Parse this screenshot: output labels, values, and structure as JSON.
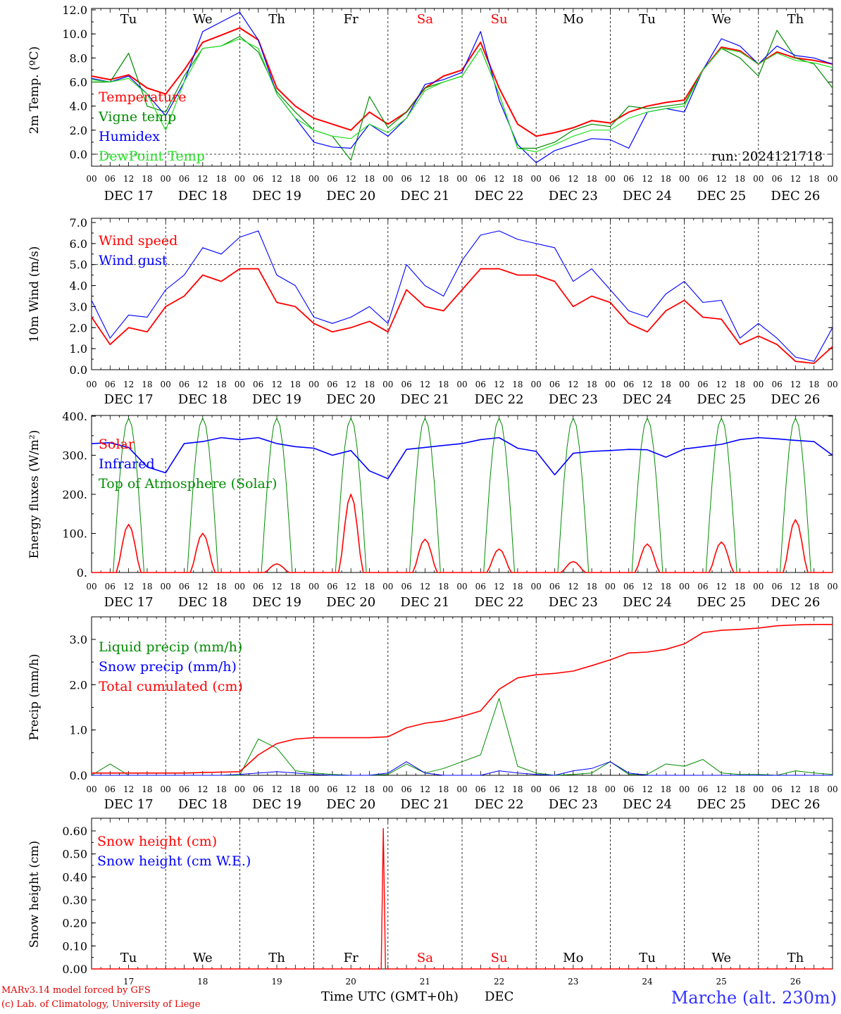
{
  "colors": {
    "temperature": "#ff0000",
    "vigne": "#008c00",
    "humidex": "#0000ff",
    "dewpoint": "#22e022",
    "wind_speed": "#ff0000",
    "wind_gust": "#0000ff",
    "solar": "#ff0000",
    "infrared": "#0000ff",
    "toa": "#008c00",
    "liquid": "#008c00",
    "snow": "#0000ff",
    "cumul": "#ff0000",
    "snow_h": "#ff0000",
    "snow_we": "#0000ff",
    "weekend": "#ff0000",
    "location": "#3232ff"
  },
  "time_axis": {
    "hour_ticks": [
      "00",
      "06",
      "12",
      "18"
    ],
    "dates": [
      "DEC 17",
      "DEC 18",
      "DEC 19",
      "DEC 20",
      "DEC 21",
      "DEC 22",
      "DEC 23",
      "DEC 24",
      "DEC 25",
      "DEC 26"
    ],
    "weekdays": [
      "Tu",
      "We",
      "Th",
      "Fr",
      "Sa",
      "Su",
      "Mo",
      "Tu",
      "We",
      "Th"
    ],
    "weekend_flags": [
      false,
      false,
      false,
      false,
      true,
      true,
      false,
      false,
      false,
      false
    ],
    "day_numbers": [
      "17",
      "18",
      "19",
      "20",
      "21",
      "22",
      "23",
      "24",
      "25",
      "26"
    ],
    "x_title": "Time UTC (GMT+0h)",
    "month": "DEC"
  },
  "chart_data": [
    {
      "type": "line",
      "ylabel": "2m Temp. (ºC)",
      "ylim": [
        -1.0,
        12.0
      ],
      "yticks": [
        "0.0",
        "2.0",
        "4.0",
        "6.0",
        "8.0",
        "10.0",
        "12.0"
      ],
      "reference_line": 0.0,
      "run_label": "run: 2024121718",
      "x_hours": [
        0,
        6,
        12,
        18,
        24,
        30,
        36,
        42,
        48,
        54,
        60,
        66,
        72,
        78,
        84,
        90,
        96,
        102,
        108,
        114,
        120,
        126,
        132,
        138,
        144,
        150,
        156,
        162,
        168,
        174,
        180,
        186,
        192,
        198,
        204,
        210,
        216,
        222,
        228,
        234,
        240
      ],
      "series": [
        {
          "name": "Temperature",
          "color_key": "temperature",
          "values": [
            6.5,
            6.2,
            6.6,
            5.5,
            5.0,
            7.0,
            9.3,
            9.9,
            10.5,
            9.5,
            5.5,
            4.0,
            3.0,
            2.5,
            2.0,
            3.5,
            2.5,
            3.5,
            5.5,
            6.5,
            7.0,
            9.3,
            5.5,
            2.5,
            1.5,
            1.8,
            2.2,
            2.8,
            2.6,
            3.5,
            4.0,
            4.3,
            4.5,
            7.0,
            8.9,
            8.6,
            7.5,
            8.5,
            8.0,
            7.8,
            7.5
          ]
        },
        {
          "name": "Vigne temp",
          "color_key": "vigne",
          "values": [
            6.0,
            6.0,
            8.4,
            4.0,
            3.5,
            6.5,
            8.8,
            9.0,
            9.8,
            8.5,
            5.2,
            3.5,
            2.0,
            1.5,
            -0.5,
            4.8,
            2.2,
            3.5,
            5.5,
            6.0,
            6.5,
            8.8,
            5.0,
            0.5,
            0.5,
            1.0,
            2.0,
            2.5,
            2.3,
            4.0,
            3.8,
            4.0,
            4.2,
            7.0,
            8.8,
            8.0,
            6.5,
            10.3,
            8.0,
            7.5,
            5.5
          ]
        },
        {
          "name": "Humidex",
          "color_key": "humidex",
          "values": [
            6.3,
            6.0,
            6.5,
            5.0,
            3.2,
            6.0,
            10.2,
            11.0,
            11.8,
            9.5,
            5.0,
            3.0,
            1.0,
            0.6,
            0.5,
            2.5,
            1.5,
            3.0,
            5.8,
            6.2,
            6.8,
            10.2,
            4.5,
            0.8,
            -0.7,
            0.3,
            0.8,
            1.3,
            1.2,
            0.5,
            3.5,
            3.8,
            3.5,
            7.0,
            9.6,
            9.0,
            7.5,
            9.0,
            8.2,
            8.0,
            7.5
          ]
        },
        {
          "name": "DewPoint Temp",
          "color_key": "dewpoint",
          "values": [
            6.2,
            6.0,
            6.3,
            5.0,
            2.0,
            6.0,
            8.8,
            9.0,
            9.6,
            8.8,
            5.0,
            3.0,
            2.0,
            1.5,
            1.3,
            2.5,
            1.8,
            3.0,
            5.3,
            6.0,
            6.5,
            8.8,
            5.0,
            0.5,
            0.2,
            0.8,
            1.5,
            2.0,
            2.0,
            3.0,
            3.5,
            3.8,
            4.0,
            7.0,
            8.8,
            8.5,
            7.5,
            8.4,
            7.8,
            7.6,
            7.2
          ]
        }
      ]
    },
    {
      "type": "line",
      "ylabel": "10m Wind (m/s)",
      "ylim": [
        0.0,
        7.5
      ],
      "yticks": [
        "0.0",
        "1.0",
        "2.0",
        "3.0",
        "4.0",
        "5.0",
        "6.0",
        "7.0"
      ],
      "reference_line": 5.0,
      "x_hours": [
        0,
        6,
        12,
        18,
        24,
        30,
        36,
        42,
        48,
        54,
        60,
        66,
        72,
        78,
        84,
        90,
        96,
        102,
        108,
        114,
        120,
        126,
        132,
        138,
        144,
        150,
        156,
        162,
        168,
        174,
        180,
        186,
        192,
        198,
        204,
        210,
        216,
        222,
        228,
        234,
        240
      ],
      "series": [
        {
          "name": "Wind speed",
          "color_key": "wind_speed",
          "values": [
            2.5,
            1.2,
            2.0,
            1.8,
            3.0,
            3.5,
            4.5,
            4.2,
            4.8,
            4.8,
            3.2,
            3.0,
            2.2,
            1.8,
            2.0,
            2.3,
            1.8,
            3.8,
            3.0,
            2.8,
            3.8,
            4.8,
            4.8,
            4.5,
            4.5,
            4.2,
            3.0,
            3.5,
            3.2,
            2.2,
            1.8,
            2.8,
            3.3,
            2.5,
            2.4,
            1.2,
            1.6,
            1.2,
            0.4,
            0.3,
            1.1
          ]
        },
        {
          "name": "Wind gust",
          "color_key": "wind_gust",
          "values": [
            3.3,
            1.5,
            2.6,
            2.5,
            3.8,
            4.5,
            5.8,
            5.5,
            6.3,
            6.6,
            4.5,
            4.0,
            2.5,
            2.2,
            2.5,
            3.0,
            2.2,
            5.0,
            4.0,
            3.5,
            5.2,
            6.4,
            6.6,
            6.2,
            6.0,
            5.8,
            4.2,
            4.8,
            3.8,
            2.8,
            2.5,
            3.6,
            4.2,
            3.2,
            3.3,
            1.5,
            2.2,
            1.5,
            0.6,
            0.4,
            2.0
          ]
        }
      ]
    },
    {
      "type": "line",
      "ylabel": "Energy fluxes (W/m²)",
      "ylim": [
        0,
        400
      ],
      "yticks": [
        "0.",
        "100.",
        "200.",
        "300.",
        "400."
      ],
      "series": [
        {
          "name": "Solar",
          "color_key": "solar",
          "peak_hour": 12,
          "peaks": [
            123,
            100,
            22,
            200,
            85,
            60,
            28,
            73,
            78,
            135
          ]
        },
        {
          "name": "Infrared",
          "color_key": "infrared",
          "x_hours": [
            0,
            6,
            12,
            18,
            24,
            30,
            36,
            42,
            48,
            54,
            60,
            66,
            72,
            78,
            84,
            90,
            96,
            102,
            108,
            114,
            120,
            126,
            132,
            138,
            144,
            150,
            156,
            162,
            168,
            174,
            180,
            186,
            192,
            198,
            204,
            210,
            216,
            222,
            228,
            234,
            240
          ],
          "values": [
            330,
            332,
            320,
            270,
            255,
            330,
            335,
            345,
            340,
            345,
            330,
            322,
            318,
            300,
            312,
            260,
            240,
            315,
            320,
            325,
            330,
            340,
            345,
            318,
            310,
            250,
            305,
            310,
            312,
            315,
            314,
            295,
            316,
            322,
            328,
            340,
            345,
            342,
            338,
            335,
            300
          ]
        },
        {
          "name": "Top of Atmosphere (Solar)",
          "color_key": "toa",
          "peak_hour": 12,
          "peaks": [
            395,
            395,
            395,
            395,
            395,
            395,
            395,
            395,
            395,
            395
          ]
        }
      ]
    },
    {
      "type": "line",
      "ylabel": "Precip (mm/h)",
      "ylim": [
        0.0,
        3.5
      ],
      "yticks": [
        "0.0",
        "1.0",
        "2.0",
        "3.0"
      ],
      "x_hours": [
        0,
        6,
        12,
        18,
        24,
        30,
        36,
        42,
        48,
        54,
        60,
        66,
        72,
        78,
        84,
        90,
        96,
        102,
        108,
        114,
        120,
        126,
        132,
        138,
        144,
        150,
        156,
        162,
        168,
        174,
        180,
        186,
        192,
        198,
        204,
        210,
        216,
        222,
        228,
        234,
        240
      ],
      "series": [
        {
          "name": "Liquid precip (mm/h)",
          "color_key": "liquid",
          "values": [
            0.0,
            0.25,
            0.0,
            0.0,
            0.0,
            0.0,
            0.0,
            0.0,
            0.0,
            0.8,
            0.6,
            0.1,
            0.05,
            0.02,
            0.0,
            0.0,
            0.02,
            0.25,
            0.05,
            0.15,
            0.3,
            0.45,
            1.7,
            0.2,
            0.05,
            0.0,
            0.02,
            0.05,
            0.3,
            0.02,
            0.02,
            0.25,
            0.2,
            0.35,
            0.05,
            0.02,
            0.02,
            0.0,
            0.1,
            0.05,
            0.02
          ]
        },
        {
          "name": "Snow precip (mm/h)",
          "color_key": "snow",
          "values": [
            0.0,
            0.0,
            0.0,
            0.0,
            0.0,
            0.0,
            0.0,
            0.0,
            0.02,
            0.05,
            0.08,
            0.05,
            0.02,
            0.0,
            0.0,
            0.0,
            0.05,
            0.3,
            0.05,
            0.0,
            0.0,
            0.0,
            0.1,
            0.05,
            0.02,
            0.0,
            0.1,
            0.15,
            0.3,
            0.05,
            0.0,
            0.0,
            0.0,
            0.0,
            0.0,
            0.0,
            0.0,
            0.0,
            0.0,
            0.0,
            0.0
          ]
        },
        {
          "name": "Total cumulated (cm)",
          "color_key": "cumul",
          "values": [
            0.05,
            0.05,
            0.05,
            0.05,
            0.05,
            0.05,
            0.06,
            0.07,
            0.08,
            0.45,
            0.7,
            0.8,
            0.83,
            0.83,
            0.83,
            0.83,
            0.85,
            1.05,
            1.15,
            1.2,
            1.3,
            1.42,
            1.9,
            2.15,
            2.22,
            2.25,
            2.3,
            2.42,
            2.55,
            2.7,
            2.72,
            2.78,
            2.9,
            3.15,
            3.2,
            3.22,
            3.25,
            3.3,
            3.32,
            3.33,
            3.33
          ]
        }
      ]
    },
    {
      "type": "line",
      "ylabel": "Snow height (cm)",
      "ylim": [
        0.0,
        0.65
      ],
      "yticks": [
        "0.00",
        "0.10",
        "0.20",
        "0.30",
        "0.40",
        "0.50",
        "0.60"
      ],
      "series": [
        {
          "name": "Snow height (cm)",
          "color_key": "snow_h",
          "spike_hour": 94.5,
          "spike_value": 0.61
        },
        {
          "name": "Snow height (cm W.E.)",
          "color_key": "snow_we",
          "values_constant": 0.0
        }
      ]
    }
  ],
  "footer": {
    "model": "MARv3.14 model forced by GFS",
    "credit": "(c) Lab. of Climatology, University of Liege",
    "location": "Marche (alt. 230m)"
  }
}
